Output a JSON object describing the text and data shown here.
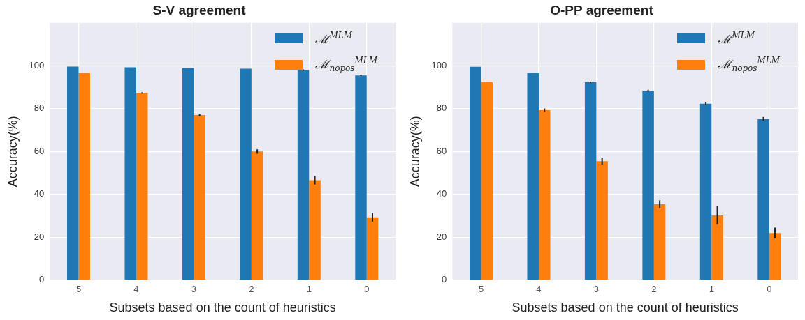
{
  "chart_data": [
    {
      "type": "bar",
      "title": "S-V agreement",
      "xlabel": "Subsets based on the count of heuristics",
      "ylabel": "Accuracy(%)",
      "categories": [
        "5",
        "4",
        "3",
        "2",
        "1",
        "0"
      ],
      "series": [
        {
          "name": "ℳ$^{MLM}$",
          "color": "#1f77b4",
          "values": [
            99.6,
            99.3,
            99.0,
            98.6,
            98.0,
            95.5
          ],
          "errors": [
            null,
            null,
            null,
            null,
            0.3,
            0.3
          ]
        },
        {
          "name": "ℳ$_{nopos}$$^{MLM}$",
          "color": "#ff7f0e",
          "values": [
            96.7,
            87.3,
            77.0,
            60.0,
            46.6,
            29.3
          ],
          "errors": [
            null,
            0.3,
            0.5,
            1.0,
            2.0,
            2.0
          ]
        }
      ],
      "ylim": [
        0,
        120
      ],
      "yticks": [
        0,
        20,
        40,
        60,
        80,
        100
      ],
      "grid": true,
      "legend": "top right"
    },
    {
      "type": "bar",
      "title": "O-PP agreement",
      "xlabel": "Subsets based on the count of heuristics",
      "ylabel": "Accuracy(%)",
      "categories": [
        "5",
        "4",
        "3",
        "2",
        "1",
        "0"
      ],
      "series": [
        {
          "name": "ℳ$^{MLM}$",
          "color": "#1f77b4",
          "values": [
            99.5,
            96.7,
            92.3,
            88.3,
            82.3,
            75.1
          ],
          "errors": [
            null,
            null,
            0.3,
            0.5,
            0.7,
            1.0
          ]
        },
        {
          "name": "ℳ$_{nopos}$$^{MLM}$",
          "color": "#ff7f0e",
          "values": [
            92.3,
            79.3,
            55.5,
            35.4,
            30.2,
            22.0
          ],
          "errors": [
            null,
            0.8,
            1.6,
            1.8,
            4.2,
            2.5
          ]
        }
      ],
      "ylim": [
        0,
        120
      ],
      "yticks": [
        0,
        20,
        40,
        60,
        80,
        100
      ],
      "grid": true,
      "legend": "top right"
    }
  ]
}
